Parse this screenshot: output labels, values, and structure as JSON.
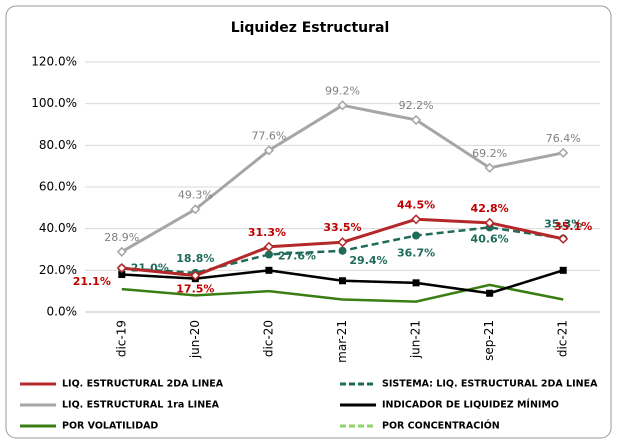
{
  "chart_data": {
    "type": "line",
    "title": "Liquidez Estructural",
    "categories": [
      "dic-19",
      "jun-20",
      "dic-20",
      "mar-21",
      "jun-21",
      "sep-21",
      "dic-21"
    ],
    "ylim": [
      0,
      120
    ],
    "yticks": [
      {
        "value": 0,
        "label": "0.0%"
      },
      {
        "value": 20,
        "label": "20.0%"
      },
      {
        "value": 40,
        "label": "40.0%"
      },
      {
        "value": 60,
        "label": "60.0%"
      },
      {
        "value": 80,
        "label": "80.0%"
      },
      {
        "value": 100,
        "label": "100.0%"
      },
      {
        "value": 120,
        "label": "120.0%"
      }
    ],
    "grid": true,
    "legend": "bottom",
    "series": [
      {
        "name": "LIQ. ESTRUCTURAL 2DA LINEA",
        "color": "#b5282a",
        "line_style": "solid",
        "marker": "diamond",
        "values": [
          21.1,
          17.5,
          31.3,
          33.5,
          44.5,
          42.8,
          35.1
        ],
        "value_labels": [
          "21.1%",
          "17.5%",
          "31.3%",
          "33.5%",
          "44.5%",
          "42.8%",
          "35.1%"
        ]
      },
      {
        "name": "SISTEMA: LIQ. ESTRUCTURAL 2DA LINEA",
        "color": "#1e6b5a",
        "line_style": "dashed",
        "marker": "circle",
        "values": [
          21.0,
          18.8,
          27.6,
          29.4,
          36.7,
          40.6,
          35.3
        ],
        "value_labels": [
          "21.0%",
          "18.8%",
          "27.6%",
          "29.4%",
          "36.7%",
          "40.6%",
          "35.3%"
        ]
      },
      {
        "name": "LIQ. ESTRUCTURAL 1ra LINEA",
        "color": "#a6a6a6",
        "line_style": "solid",
        "marker": "diamond",
        "values": [
          28.9,
          49.3,
          77.6,
          99.2,
          92.2,
          69.2,
          76.4
        ],
        "value_labels": [
          "28.9%",
          "49.3%",
          "77.6%",
          "99.2%",
          "92.2%",
          "69.2%",
          "76.4%"
        ]
      },
      {
        "name": "INDICADOR DE LIQUIDEZ MÍNIMO",
        "color": "#000000",
        "line_style": "solid",
        "marker": "square",
        "values": [
          18,
          16,
          20,
          15,
          14,
          9,
          20
        ]
      },
      {
        "name": "POR VOLATILIDAD",
        "color": "#3a7d12",
        "line_style": "solid",
        "marker": "none",
        "values": [
          11,
          8,
          10,
          6,
          5,
          13,
          6
        ]
      },
      {
        "name": "POR CONCENTRACIÓN",
        "color": "#8fd16a",
        "line_style": "dashed",
        "marker": "x",
        "values": [
          18,
          16,
          20,
          15,
          14,
          9,
          20
        ]
      }
    ]
  }
}
